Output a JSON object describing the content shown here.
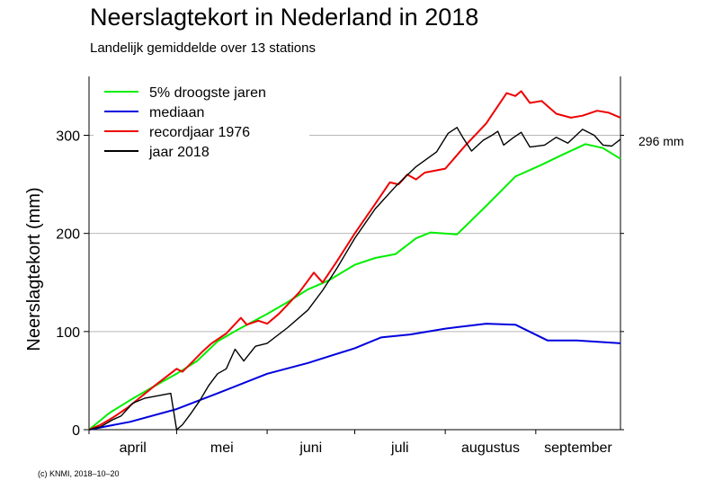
{
  "chart_data": {
    "type": "line",
    "title": "Neerslagtekort in Nederland in 2018",
    "subtitle": "Landelijk gemiddelde over 13 stations",
    "ylabel": "Neerslagtekort (mm)",
    "xlabel": "",
    "ylim": [
      0,
      360
    ],
    "xlim": [
      "2018-04-01",
      "2018-09-30"
    ],
    "y_ticks": [
      0,
      100,
      200,
      300
    ],
    "y_tick_labels": [
      "0",
      "100",
      "200",
      "300"
    ],
    "month_labels": [
      {
        "label": "april",
        "start": "2018-04-01",
        "end": "2018-05-01"
      },
      {
        "label": "mei",
        "start": "2018-05-01",
        "end": "2018-06-01"
      },
      {
        "label": "juni",
        "start": "2018-06-01",
        "end": "2018-07-01"
      },
      {
        "label": "juli",
        "start": "2018-07-01",
        "end": "2018-08-01"
      },
      {
        "label": "augustus",
        "start": "2018-08-01",
        "end": "2018-09-01"
      },
      {
        "label": "september",
        "start": "2018-09-01",
        "end": "2018-10-01"
      }
    ],
    "grid": "horizontal",
    "legend": "top-left",
    "end_annotation": "296 mm",
    "series": [
      {
        "name": "5% droogste jaren",
        "color": "#00ee00",
        "points": [
          [
            "2018-04-01",
            0
          ],
          [
            "2018-04-08",
            17
          ],
          [
            "2018-04-15",
            30
          ],
          [
            "2018-04-22",
            42
          ],
          [
            "2018-05-01",
            57
          ],
          [
            "2018-05-08",
            70
          ],
          [
            "2018-05-15",
            90
          ],
          [
            "2018-05-22",
            102
          ],
          [
            "2018-06-01",
            118
          ],
          [
            "2018-06-08",
            130
          ],
          [
            "2018-06-15",
            143
          ],
          [
            "2018-06-22",
            152
          ],
          [
            "2018-07-01",
            168
          ],
          [
            "2018-07-08",
            175
          ],
          [
            "2018-07-15",
            179
          ],
          [
            "2018-07-22",
            195
          ],
          [
            "2018-07-27",
            201
          ],
          [
            "2018-08-05",
            199
          ],
          [
            "2018-08-15",
            228
          ],
          [
            "2018-08-25",
            258
          ],
          [
            "2018-09-03",
            270
          ],
          [
            "2018-09-10",
            280
          ],
          [
            "2018-09-18",
            291
          ],
          [
            "2018-09-24",
            287
          ],
          [
            "2018-09-30",
            276
          ]
        ]
      },
      {
        "name": "mediaan",
        "color": "#0000dd",
        "points": [
          [
            "2018-04-01",
            0
          ],
          [
            "2018-04-15",
            8
          ],
          [
            "2018-05-01",
            21
          ],
          [
            "2018-05-15",
            37
          ],
          [
            "2018-06-01",
            57
          ],
          [
            "2018-06-15",
            68
          ],
          [
            "2018-07-01",
            83
          ],
          [
            "2018-07-10",
            94
          ],
          [
            "2018-07-20",
            97
          ],
          [
            "2018-08-01",
            103
          ],
          [
            "2018-08-15",
            108
          ],
          [
            "2018-08-25",
            107
          ],
          [
            "2018-09-05",
            91
          ],
          [
            "2018-09-15",
            91
          ],
          [
            "2018-09-30",
            88
          ]
        ]
      },
      {
        "name": "recordjaar 1976",
        "color": "#ee0000",
        "points": [
          [
            "2018-04-01",
            0
          ],
          [
            "2018-04-05",
            5
          ],
          [
            "2018-04-09",
            12
          ],
          [
            "2018-04-14",
            22
          ],
          [
            "2018-04-19",
            34
          ],
          [
            "2018-04-24",
            46
          ],
          [
            "2018-05-01",
            62
          ],
          [
            "2018-05-03",
            59
          ],
          [
            "2018-05-06",
            68
          ],
          [
            "2018-05-10",
            80
          ],
          [
            "2018-05-13",
            88
          ],
          [
            "2018-05-18",
            98
          ],
          [
            "2018-05-23",
            114
          ],
          [
            "2018-05-25",
            107
          ],
          [
            "2018-05-29",
            111
          ],
          [
            "2018-06-01",
            108
          ],
          [
            "2018-06-05",
            118
          ],
          [
            "2018-06-12",
            140
          ],
          [
            "2018-06-17",
            160
          ],
          [
            "2018-06-20",
            150
          ],
          [
            "2018-06-25",
            172
          ],
          [
            "2018-07-01",
            200
          ],
          [
            "2018-07-08",
            230
          ],
          [
            "2018-07-13",
            252
          ],
          [
            "2018-07-16",
            250
          ],
          [
            "2018-07-19",
            260
          ],
          [
            "2018-07-22",
            255
          ],
          [
            "2018-07-25",
            262
          ],
          [
            "2018-08-01",
            266
          ],
          [
            "2018-08-08",
            290
          ],
          [
            "2018-08-15",
            312
          ],
          [
            "2018-08-22",
            343
          ],
          [
            "2018-08-25",
            340
          ],
          [
            "2018-08-27",
            345
          ],
          [
            "2018-08-30",
            333
          ],
          [
            "2018-09-03",
            335
          ],
          [
            "2018-09-08",
            322
          ],
          [
            "2018-09-13",
            318
          ],
          [
            "2018-09-17",
            320
          ],
          [
            "2018-09-22",
            325
          ],
          [
            "2018-09-26",
            323
          ],
          [
            "2018-09-30",
            318
          ]
        ]
      },
      {
        "name": "jaar 2018",
        "color": "#000000",
        "points": [
          [
            "2018-04-01",
            0
          ],
          [
            "2018-04-05",
            3
          ],
          [
            "2018-04-09",
            10
          ],
          [
            "2018-04-12",
            14
          ],
          [
            "2018-04-16",
            27
          ],
          [
            "2018-04-20",
            32
          ],
          [
            "2018-04-29",
            37
          ],
          [
            "2018-05-01",
            0
          ],
          [
            "2018-05-03",
            5
          ],
          [
            "2018-05-06",
            17
          ],
          [
            "2018-05-09",
            30
          ],
          [
            "2018-05-12",
            45
          ],
          [
            "2018-05-15",
            57
          ],
          [
            "2018-05-18",
            62
          ],
          [
            "2018-05-21",
            82
          ],
          [
            "2018-05-24",
            70
          ],
          [
            "2018-05-28",
            85
          ],
          [
            "2018-06-01",
            88
          ],
          [
            "2018-06-08",
            104
          ],
          [
            "2018-06-15",
            122
          ],
          [
            "2018-06-20",
            142
          ],
          [
            "2018-06-25",
            165
          ],
          [
            "2018-07-01",
            195
          ],
          [
            "2018-07-08",
            225
          ],
          [
            "2018-07-15",
            248
          ],
          [
            "2018-07-22",
            268
          ],
          [
            "2018-07-29",
            283
          ],
          [
            "2018-08-02",
            302
          ],
          [
            "2018-08-05",
            308
          ],
          [
            "2018-08-07",
            298
          ],
          [
            "2018-08-10",
            284
          ],
          [
            "2018-08-14",
            295
          ],
          [
            "2018-08-17",
            300
          ],
          [
            "2018-08-19",
            304
          ],
          [
            "2018-08-21",
            290
          ],
          [
            "2018-08-24",
            297
          ],
          [
            "2018-08-27",
            303
          ],
          [
            "2018-08-30",
            288
          ],
          [
            "2018-09-04",
            290
          ],
          [
            "2018-09-08",
            298
          ],
          [
            "2018-09-12",
            292
          ],
          [
            "2018-09-17",
            306
          ],
          [
            "2018-09-21",
            300
          ],
          [
            "2018-09-24",
            290
          ],
          [
            "2018-09-27",
            289
          ],
          [
            "2018-09-30",
            296
          ]
        ]
      }
    ]
  },
  "footer": {
    "copyright": "(c) KNMI, 2018–10–20"
  }
}
